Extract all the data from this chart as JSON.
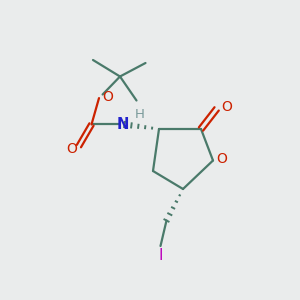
{
  "background_color": "#eaecec",
  "bond_color": "#4a7a6a",
  "oxygen_color": "#cc2200",
  "nitrogen_color": "#2222cc",
  "iodine_color": "#bb00bb",
  "hydrogen_color": "#7a9a9a",
  "line_width": 1.6,
  "figsize": [
    3.0,
    3.0
  ],
  "dpi": 100,
  "xlim": [
    0,
    10
  ],
  "ylim": [
    0,
    10
  ]
}
